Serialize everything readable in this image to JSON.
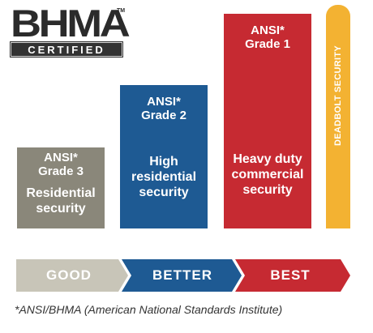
{
  "logo": {
    "main": "BHMA",
    "tm": "TM",
    "sub": "CERTIFIED"
  },
  "bars": [
    {
      "ansi": "ANSI*",
      "grade": "Grade 3",
      "desc_line1": "Residential",
      "desc_line2": "security",
      "level": 1,
      "color": "#8a877a"
    },
    {
      "ansi": "ANSI*",
      "grade": "Grade 2",
      "desc_line1": "High",
      "desc_line2": "residential",
      "desc_line3": "security",
      "level": 2,
      "color": "#1e5a93"
    },
    {
      "ansi": "ANSI*",
      "grade": "Grade 1",
      "desc_line1": "Heavy duty",
      "desc_line2": "commercial",
      "desc_line3": "security",
      "level": 3,
      "color": "#c62a32"
    },
    {
      "label": "DEADBOLT SECURITY",
      "level": 4,
      "color": "#f3b232"
    }
  ],
  "scale": [
    {
      "label": "GOOD",
      "color": "#c8c5b8"
    },
    {
      "label": "BETTER",
      "color": "#1e5a93"
    },
    {
      "label": "BEST",
      "color": "#c62a32"
    }
  ],
  "footnote": "*ANSI/BHMA (American National Standards Institute)"
}
